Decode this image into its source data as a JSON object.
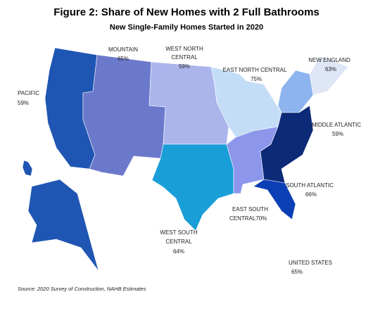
{
  "title": "Figure 2: Share of New Homes with 2 Full Bathrooms",
  "subtitle": "New Single-Family Homes Started in 2020",
  "regions": [
    {
      "name_lines": [
        "PACIFIC"
      ],
      "value": "59%",
      "color": "#1f56b3"
    },
    {
      "name_lines": [
        "MOUNTAIN"
      ],
      "value": "65%",
      "color": "#6b79cc"
    },
    {
      "name_lines": [
        "WEST NORTH",
        "CENTRAL"
      ],
      "value": "59%",
      "color": "#abb5ec"
    },
    {
      "name_lines": [
        "EAST NORTH CENTRAL"
      ],
      "value": "75%",
      "color": "#c4ddf6"
    },
    {
      "name_lines": [
        "NEW ENGLAND"
      ],
      "value": "63%",
      "color": "#dfe6f6"
    },
    {
      "name_lines": [
        "MIDDLE ATLANTIC"
      ],
      "value": "59%",
      "color": "#8db4ee"
    },
    {
      "name_lines": [
        "SOUTH ATLANTIC"
      ],
      "value": "66%",
      "color": "#0d2a78"
    },
    {
      "name_lines": [
        "EAST SOUTH",
        "CENTRAL"
      ],
      "value": "70%",
      "color": "#8c97ec"
    },
    {
      "name_lines": [
        "WEST SOUTH",
        "CENTRAL"
      ],
      "value": "64%",
      "color": "#1a9ed8"
    }
  ],
  "total": {
    "name": "UNITED STATES",
    "value": "65%"
  },
  "source": "Source: 2020 Survey of Construction, NAHB Estimates"
}
